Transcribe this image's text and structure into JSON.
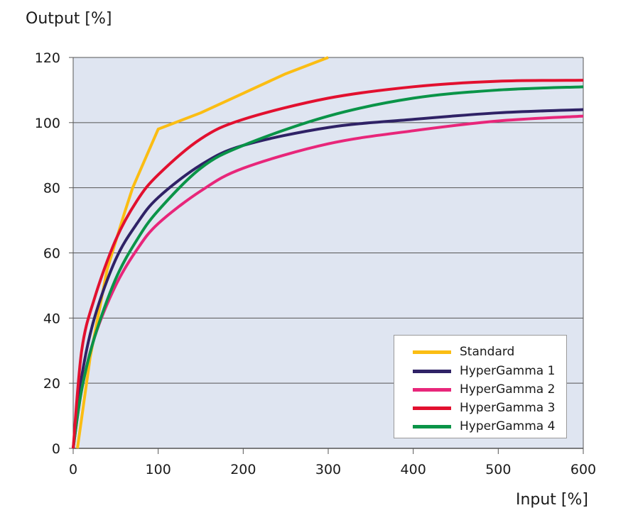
{
  "chart_data": {
    "type": "line",
    "ylabel": "Output [%]",
    "xlabel": "Input [%]",
    "xlim": [
      0,
      600
    ],
    "ylim": [
      0,
      120
    ],
    "xticks": [
      "0",
      "100",
      "200",
      "300",
      "400",
      "500",
      "600"
    ],
    "yticks": [
      "0",
      "20",
      "40",
      "60",
      "80",
      "100",
      "120"
    ],
    "grid": "horizontal",
    "legend_position": "bottom-right",
    "background_color": "#dfe5f1",
    "series": [
      {
        "name": "Standard",
        "color": "#fbbd13",
        "x": [
          5,
          20,
          40,
          60,
          70,
          80,
          100,
          150,
          200,
          250,
          300
        ],
        "y": [
          0,
          28,
          55,
          72,
          80,
          86,
          98,
          103,
          109,
          115,
          120
        ]
      },
      {
        "name": "HyperGamma 1",
        "color": "#2f2266",
        "x": [
          0,
          10,
          25,
          50,
          75,
          100,
          150,
          200,
          300,
          400,
          500,
          600
        ],
        "y": [
          0,
          22,
          40,
          58,
          69,
          77,
          87,
          93,
          98.5,
          101,
          103,
          104
        ]
      },
      {
        "name": "HyperGamma 2",
        "color": "#e8267a",
        "x": [
          0,
          10,
          25,
          50,
          75,
          100,
          150,
          200,
          300,
          400,
          500,
          600
        ],
        "y": [
          0,
          18,
          34,
          50,
          61,
          69,
          79,
          86,
          93.5,
          97.5,
          100.5,
          102
        ]
      },
      {
        "name": "HyperGamma 3",
        "color": "#e2102f",
        "x": [
          0,
          10,
          25,
          50,
          75,
          100,
          150,
          200,
          300,
          400,
          500,
          600
        ],
        "y": [
          0,
          30,
          46,
          64,
          76,
          84,
          95,
          101,
          107.5,
          111,
          112.7,
          113
        ]
      },
      {
        "name": "HyperGamma 4",
        "color": "#0a9448",
        "x": [
          0,
          10,
          25,
          50,
          75,
          100,
          150,
          200,
          300,
          400,
          500,
          600
        ],
        "y": [
          0,
          18,
          34,
          52,
          64,
          73,
          86,
          93,
          102,
          107.5,
          110,
          111
        ]
      }
    ]
  }
}
